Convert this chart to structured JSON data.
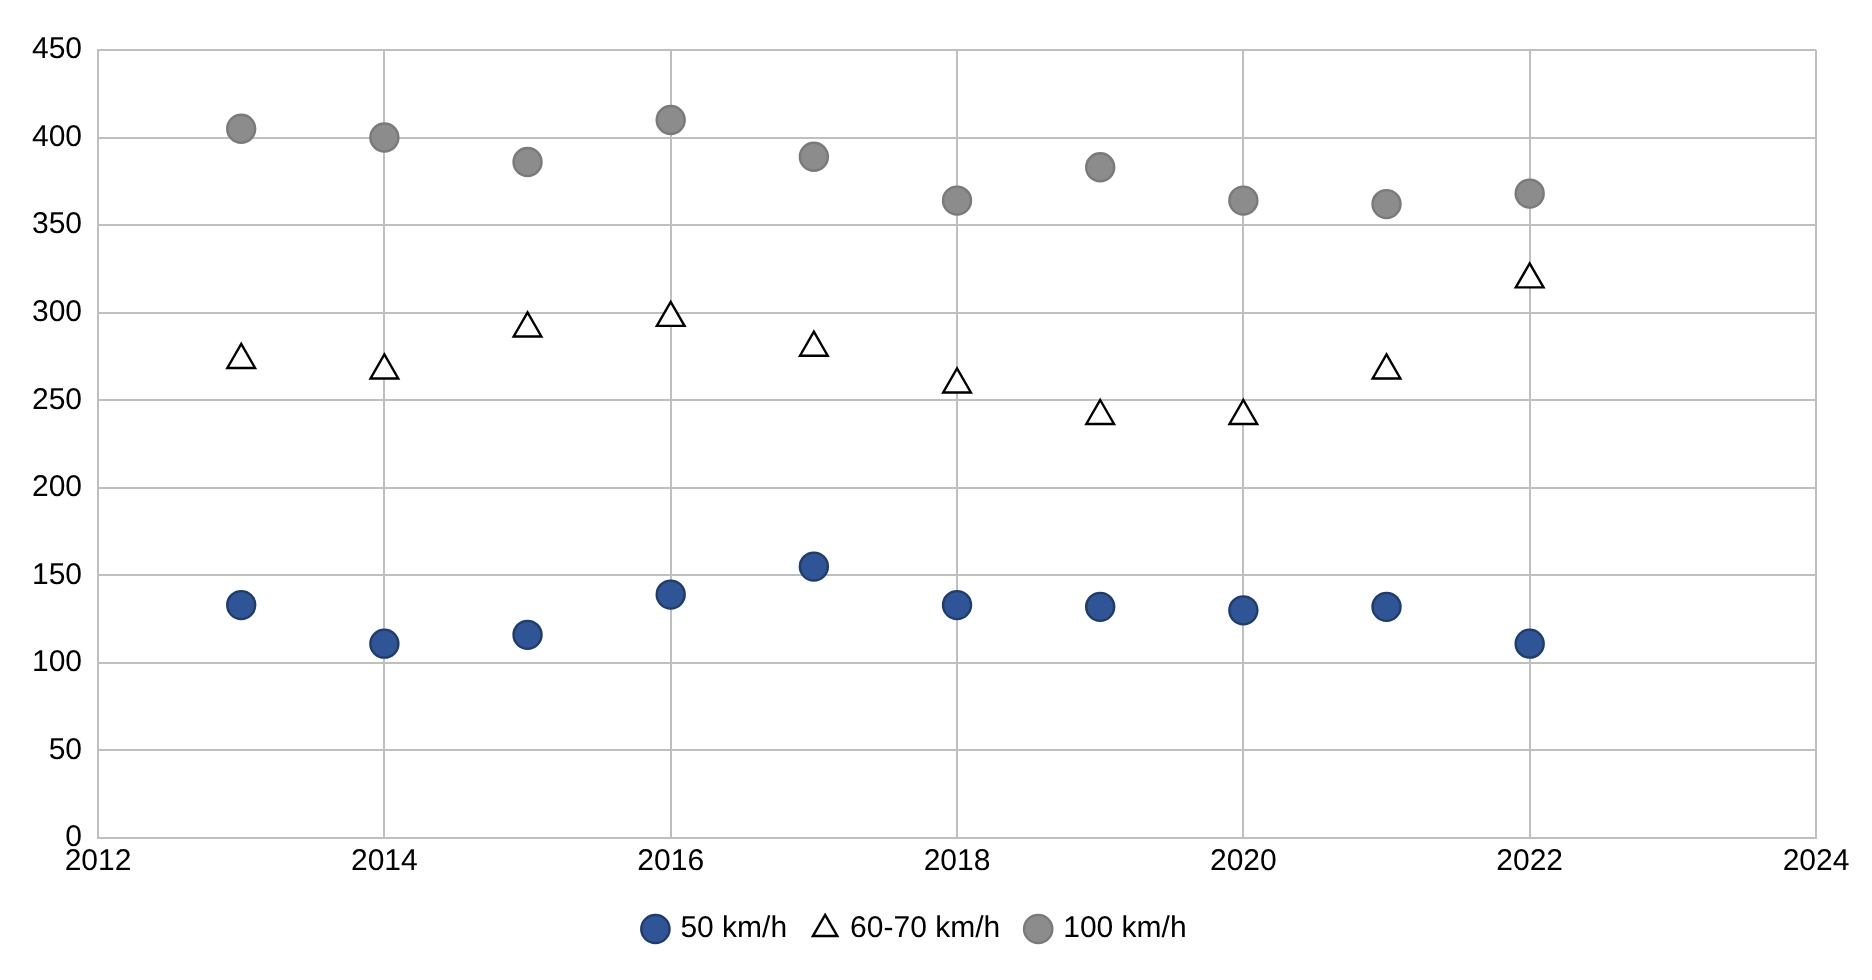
{
  "chart_data": {
    "type": "scatter",
    "x": [
      2013,
      2014,
      2015,
      2016,
      2017,
      2018,
      2019,
      2020,
      2021,
      2022
    ],
    "series": [
      {
        "name": "50 km/h",
        "color": "#2f5597",
        "marker": "circle",
        "values": [
          133,
          111,
          116,
          139,
          155,
          133,
          132,
          130,
          132,
          111
        ]
      },
      {
        "name": "60-70 km/h",
        "color": "#ffffff",
        "marker": "triangle",
        "values": [
          273,
          267,
          291,
          297,
          280,
          259,
          241,
          241,
          267,
          319
        ]
      },
      {
        "name": "100 km/h",
        "color": "#8c8c8c",
        "marker": "circle",
        "values": [
          405,
          400,
          386,
          410,
          389,
          364,
          383,
          364,
          362,
          368
        ]
      }
    ],
    "xlim": [
      2012,
      2024
    ],
    "xticks": [
      2012,
      2014,
      2016,
      2018,
      2020,
      2022,
      2024
    ],
    "ylim": [
      0,
      450
    ],
    "yticks": [
      0,
      50,
      100,
      150,
      200,
      250,
      300,
      350,
      400,
      450
    ],
    "grid": true,
    "legend": "bottom"
  }
}
